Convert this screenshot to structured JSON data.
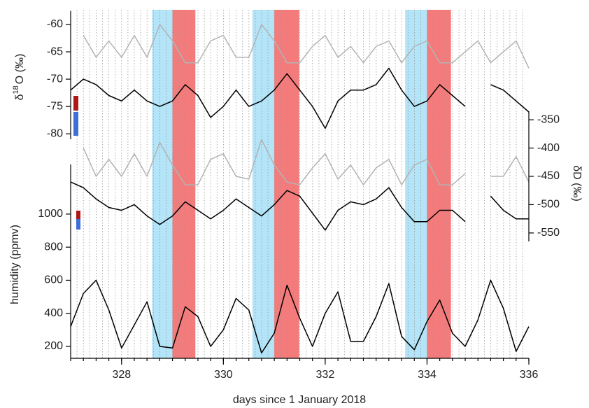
{
  "chart_data": [
    {
      "type": "line",
      "ylabel": [
        "δ",
        "18",
        "O (‰)"
      ],
      "axis": "left",
      "ylim": [
        -81,
        -57.5
      ],
      "yticks": [
        -60,
        -65,
        -70,
        -75,
        -80
      ],
      "x": [
        327.0,
        327.25,
        327.5,
        327.75,
        328.0,
        328.25,
        328.5,
        328.75,
        329.0,
        329.25,
        329.5,
        329.75,
        330.0,
        330.25,
        330.5,
        330.75,
        331.0,
        331.25,
        331.5,
        331.75,
        332.0,
        332.25,
        332.5,
        332.75,
        333.0,
        333.25,
        333.5,
        333.75,
        334.0,
        334.25,
        334.5,
        334.75,
        335.0,
        335.25,
        335.5,
        335.75,
        336.0
      ],
      "series": [
        {
          "color": "#b3b3b3",
          "values": [
            null,
            -62,
            -66,
            -63,
            -66,
            -62,
            -66,
            -60,
            -63,
            -67,
            -67,
            -63,
            -62,
            -66,
            -66,
            -60,
            -63,
            -67,
            -67,
            -64,
            -62,
            -66,
            -64,
            -67,
            -64,
            -63,
            -67,
            -64,
            -63,
            -67,
            -67,
            -65,
            -63,
            -67,
            -65,
            -63,
            -68
          ]
        },
        {
          "color": "#000000",
          "values": [
            -72,
            -70,
            -71,
            -73,
            -74,
            -72,
            -74,
            -75,
            -74,
            -71,
            -73,
            -77,
            -75,
            -72,
            -75,
            -74,
            -72,
            -69,
            -72,
            -75,
            -79,
            -74,
            -72,
            -72,
            -71,
            -68,
            -72,
            -75,
            -74,
            -71,
            -73,
            -75,
            null,
            -71,
            -72,
            -74,
            -76
          ]
        }
      ]
    },
    {
      "type": "line",
      "ylabel": "δD (‰)",
      "axis": "right",
      "ylim": [
        -565,
        -335
      ],
      "yticks": [
        -350,
        -400,
        -450,
        -500,
        -550
      ],
      "x": [
        327.0,
        327.25,
        327.5,
        327.75,
        328.0,
        328.25,
        328.5,
        328.75,
        329.0,
        329.25,
        329.5,
        329.75,
        330.0,
        330.25,
        330.5,
        330.75,
        331.0,
        331.25,
        331.5,
        331.75,
        332.0,
        332.25,
        332.5,
        332.75,
        333.0,
        333.25,
        333.5,
        333.75,
        334.0,
        334.25,
        334.5,
        334.75,
        335.0,
        335.25,
        335.5,
        335.75,
        336.0
      ],
      "series": [
        {
          "color": "#b3b3b3",
          "values": [
            null,
            -400,
            -450,
            -420,
            -450,
            -410,
            -450,
            -390,
            -430,
            -465,
            -465,
            -420,
            -410,
            -450,
            -455,
            -385,
            -430,
            -460,
            -465,
            -435,
            -410,
            -455,
            -430,
            -465,
            -435,
            -420,
            -465,
            -430,
            -420,
            -465,
            -465,
            -445,
            null,
            -450,
            -450,
            -415,
            -460
          ]
        },
        {
          "color": "#000000",
          "values": [
            -460,
            -470,
            -490,
            -505,
            -510,
            -500,
            -520,
            -535,
            -520,
            -495,
            -510,
            -525,
            -510,
            -490,
            -505,
            -520,
            -500,
            -475,
            -485,
            -515,
            -545,
            -510,
            -495,
            -500,
            -490,
            -470,
            -505,
            -530,
            -530,
            -510,
            -510,
            -530,
            null,
            -485,
            -510,
            -525,
            -525
          ]
        }
      ]
    },
    {
      "type": "line",
      "ylabel": "humidity (ppmv)",
      "axis": "left",
      "ylim": [
        128,
        1300
      ],
      "yticks": [
        200,
        400,
        600,
        800,
        1000
      ],
      "xlabel": "days since 1 January 2018",
      "xlim": [
        327,
        336
      ],
      "xticks": [
        328,
        330,
        332,
        334,
        336
      ],
      "x": [
        327.0,
        327.25,
        327.5,
        327.75,
        328.0,
        328.25,
        328.5,
        328.75,
        329.0,
        329.25,
        329.5,
        329.75,
        330.0,
        330.25,
        330.5,
        330.75,
        331.0,
        331.25,
        331.5,
        331.75,
        332.0,
        332.25,
        332.5,
        332.75,
        333.0,
        333.25,
        333.5,
        333.75,
        334.0,
        334.25,
        334.5,
        334.75,
        335.0,
        335.25,
        335.5,
        335.75,
        336.0
      ],
      "series": [
        {
          "color": "#000000",
          "values": [
            320,
            520,
            600,
            420,
            190,
            330,
            470,
            200,
            190,
            440,
            380,
            200,
            300,
            490,
            420,
            160,
            280,
            570,
            370,
            200,
            400,
            530,
            230,
            230,
            380,
            580,
            260,
            180,
            350,
            480,
            280,
            200,
            360,
            600,
            430,
            170,
            320
          ]
        }
      ]
    }
  ],
  "shaded_periods": [
    {
      "x": [
        328.6,
        329.0
      ],
      "color": "#b3e4f8"
    },
    {
      "x": [
        329.0,
        329.45
      ],
      "color": "#f47b7b"
    },
    {
      "x": [
        330.57,
        331.0
      ],
      "color": "#b3e4f8"
    },
    {
      "x": [
        331.0,
        331.49
      ],
      "color": "#f47b7b"
    },
    {
      "x": [
        333.57,
        334.0
      ],
      "color": "#b3e4f8"
    },
    {
      "x": [
        334.0,
        334.47
      ],
      "color": "#f47b7b"
    }
  ]
}
